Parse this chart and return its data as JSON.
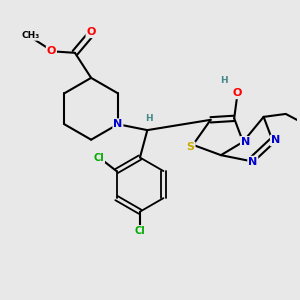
{
  "background_color": "#e8e8e8",
  "atom_colors": {
    "O": "#ff0000",
    "N": "#0000cc",
    "S": "#ccaa00",
    "Cl": "#00aa00",
    "H": "#448888",
    "C": "#000000"
  }
}
